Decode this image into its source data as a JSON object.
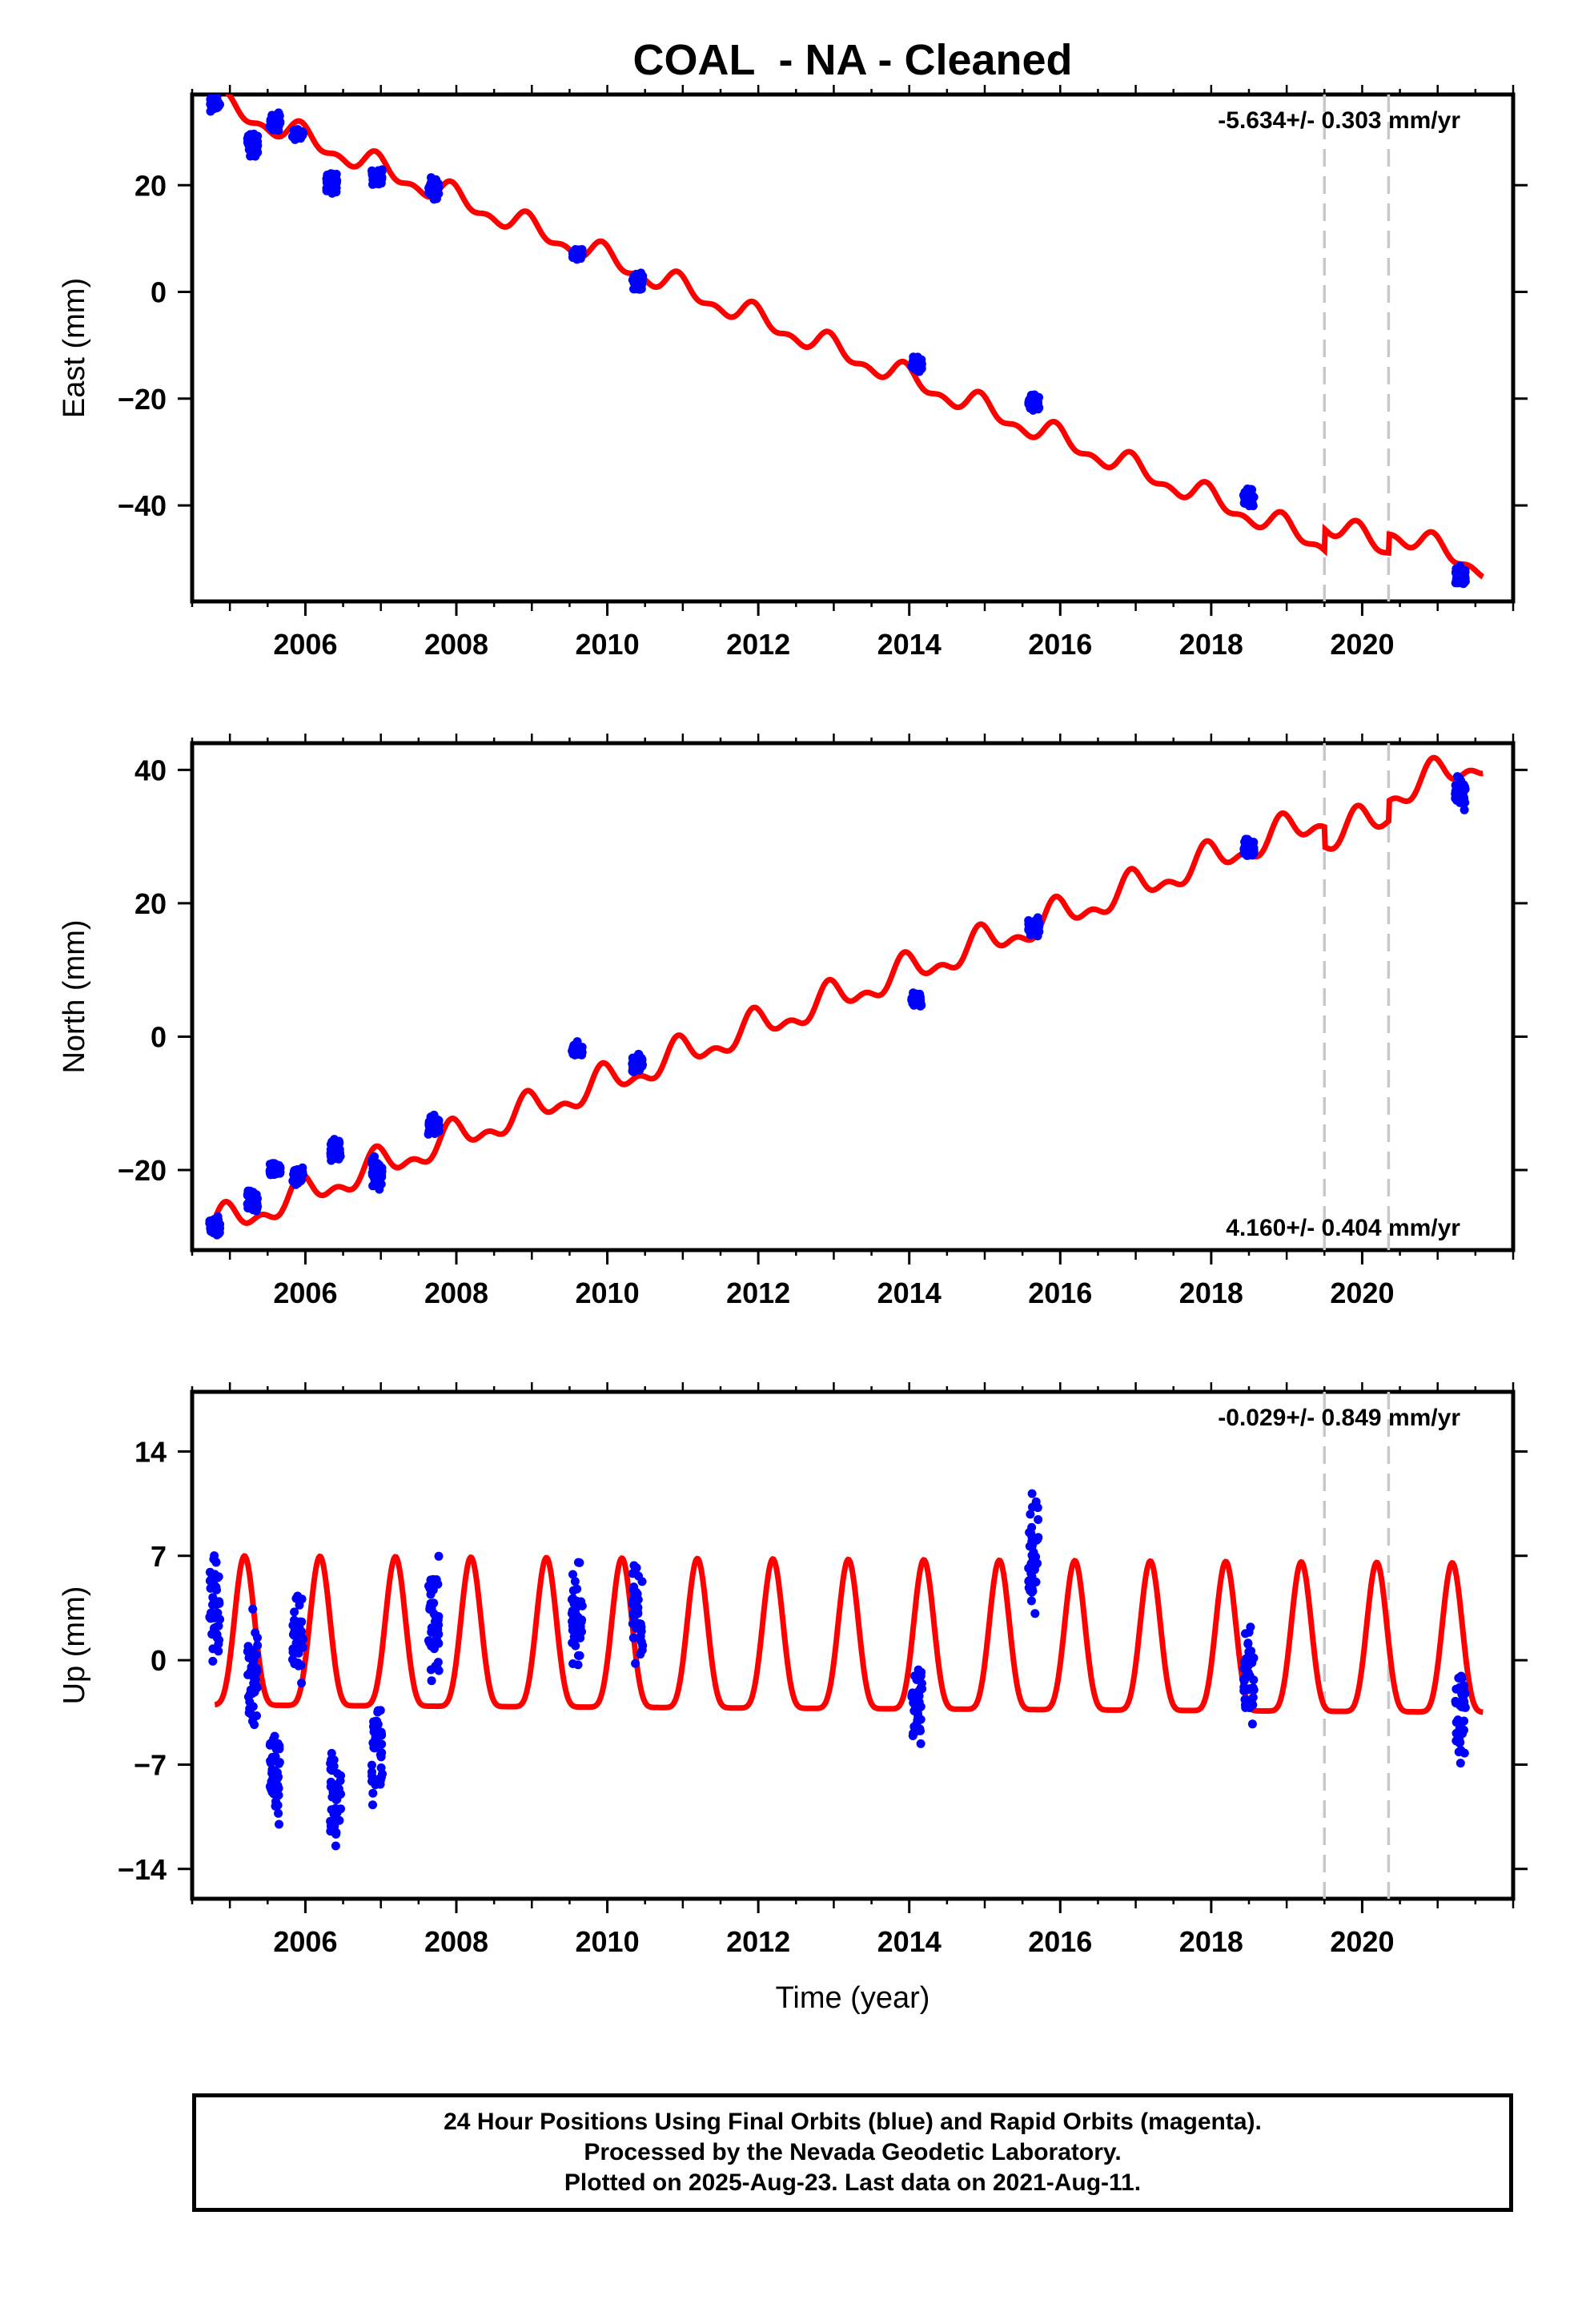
{
  "title": "COAL  - NA - Cleaned",
  "footer": {
    "line1": "24 Hour Positions Using Final Orbits (blue) and Rapid Orbits (magenta).",
    "line2": "Processed by the Nevada Geodetic Laboratory.",
    "line3": "Plotted on 2025-Aug-23. Last data on 2021-Aug-11."
  },
  "colors": {
    "observations": "#0000ff",
    "model": "#ff0000",
    "events": "#c8c8c8",
    "frame": "#000000"
  },
  "chart_data": [
    {
      "type": "scatter",
      "ylabel": "East (mm)",
      "xlabel": "",
      "rate_label": "-5.634+/- 0.303 mm/yr",
      "rate_position": "top-right",
      "xlim": [
        2004.5,
        2022.0
      ],
      "ylim": [
        -58,
        37
      ],
      "xticks": [
        2006,
        2008,
        2010,
        2012,
        2014,
        2016,
        2018,
        2020
      ],
      "yticks": [
        20,
        0,
        -20,
        -40
      ],
      "event_lines_year": [
        2019.5,
        2020.35
      ],
      "model": {
        "start_year": 2004.8,
        "start_value": 35.5,
        "rate": -5.634,
        "annual_amplitude": 1.8,
        "steps": [
          [
            2019.5,
            4.0
          ],
          [
            2020.35,
            3.5
          ]
        ]
      },
      "observations": [
        {
          "year": 2004.8,
          "center": 35.2,
          "spread": 1.8
        },
        {
          "year": 2005.3,
          "center": 27.5,
          "spread": 3.0
        },
        {
          "year": 2005.6,
          "center": 32.0,
          "spread": 2.5
        },
        {
          "year": 2005.9,
          "center": 29.5,
          "spread": 1.2
        },
        {
          "year": 2006.35,
          "center": 21.0,
          "spread": 3.0
        },
        {
          "year": 2006.95,
          "center": 21.5,
          "spread": 2.2
        },
        {
          "year": 2007.7,
          "center": 19.5,
          "spread": 2.5
        },
        {
          "year": 2009.6,
          "center": 7.0,
          "spread": 1.5
        },
        {
          "year": 2010.4,
          "center": 2.0,
          "spread": 2.0
        },
        {
          "year": 2014.1,
          "center": -13.5,
          "spread": 2.0
        },
        {
          "year": 2015.65,
          "center": -21.0,
          "spread": 2.2
        },
        {
          "year": 2018.5,
          "center": -38.5,
          "spread": 2.2
        },
        {
          "year": 2021.3,
          "center": -53.5,
          "spread": 2.5
        }
      ]
    },
    {
      "type": "scatter",
      "ylabel": "North (mm)",
      "xlabel": "",
      "rate_label": "4.160+/- 0.404 mm/yr",
      "rate_position": "bottom-right",
      "xlim": [
        2004.5,
        2022.0
      ],
      "ylim": [
        -32,
        44
      ],
      "xticks": [
        2006,
        2008,
        2010,
        2012,
        2014,
        2016,
        2018,
        2020
      ],
      "yticks": [
        40,
        20,
        0,
        -20
      ],
      "event_lines_year": [
        2019.5,
        2020.35
      ],
      "model": {
        "start_year": 2004.8,
        "start_value": -28.5,
        "rate": 4.16,
        "annual_amplitude": 2.0,
        "steps": [
          [
            2019.5,
            -3.0
          ],
          [
            2020.35,
            3.0
          ]
        ]
      },
      "observations": [
        {
          "year": 2004.8,
          "center": -28.5,
          "spread": 2.0
        },
        {
          "year": 2005.3,
          "center": -25.0,
          "spread": 2.5
        },
        {
          "year": 2005.6,
          "center": -20.0,
          "spread": 1.5
        },
        {
          "year": 2005.9,
          "center": -21.0,
          "spread": 2.0
        },
        {
          "year": 2006.4,
          "center": -17.0,
          "spread": 2.5
        },
        {
          "year": 2006.95,
          "center": -20.5,
          "spread": 3.5
        },
        {
          "year": 2007.7,
          "center": -13.5,
          "spread": 2.0
        },
        {
          "year": 2009.6,
          "center": -2.0,
          "spread": 1.5
        },
        {
          "year": 2010.4,
          "center": -4.0,
          "spread": 1.8
        },
        {
          "year": 2014.1,
          "center": 5.5,
          "spread": 1.5
        },
        {
          "year": 2015.65,
          "center": 16.5,
          "spread": 2.2
        },
        {
          "year": 2018.5,
          "center": 28.5,
          "spread": 2.5
        },
        {
          "year": 2021.3,
          "center": 36.5,
          "spread": 3.5
        }
      ]
    },
    {
      "type": "scatter",
      "ylabel": "Up (mm)",
      "xlabel": "Time (year)",
      "rate_label": "-0.029+/- 0.849 mm/yr",
      "rate_position": "top-right",
      "xlim": [
        2004.5,
        2022.0
      ],
      "ylim": [
        -16,
        18
      ],
      "xticks": [
        2006,
        2008,
        2010,
        2012,
        2014,
        2016,
        2018,
        2020
      ],
      "yticks": [
        14,
        7,
        0,
        -7,
        -14
      ],
      "event_lines_year": [
        2019.5,
        2020.35
      ],
      "model": {
        "start_year": 2004.8,
        "start_value": 0.0,
        "rate": -0.029,
        "annual_amplitude": 5.0,
        "steps": []
      },
      "observations": [
        {
          "year": 2004.8,
          "center": 3.5,
          "spread": 5.5
        },
        {
          "year": 2005.3,
          "center": -1.0,
          "spread": 6.0
        },
        {
          "year": 2005.6,
          "center": -7.5,
          "spread": 4.5
        },
        {
          "year": 2005.9,
          "center": 1.5,
          "spread": 3.5
        },
        {
          "year": 2006.4,
          "center": -9.0,
          "spread": 5.5
        },
        {
          "year": 2006.95,
          "center": -6.0,
          "spread": 5.0
        },
        {
          "year": 2007.7,
          "center": 2.5,
          "spread": 5.5
        },
        {
          "year": 2009.6,
          "center": 3.0,
          "spread": 4.5
        },
        {
          "year": 2010.4,
          "center": 3.0,
          "spread": 4.5
        },
        {
          "year": 2014.1,
          "center": -3.0,
          "spread": 4.5
        },
        {
          "year": 2015.65,
          "center": 7.5,
          "spread": 5.0
        },
        {
          "year": 2018.5,
          "center": -1.0,
          "spread": 4.5
        },
        {
          "year": 2021.3,
          "center": -3.5,
          "spread": 5.0
        }
      ]
    }
  ]
}
